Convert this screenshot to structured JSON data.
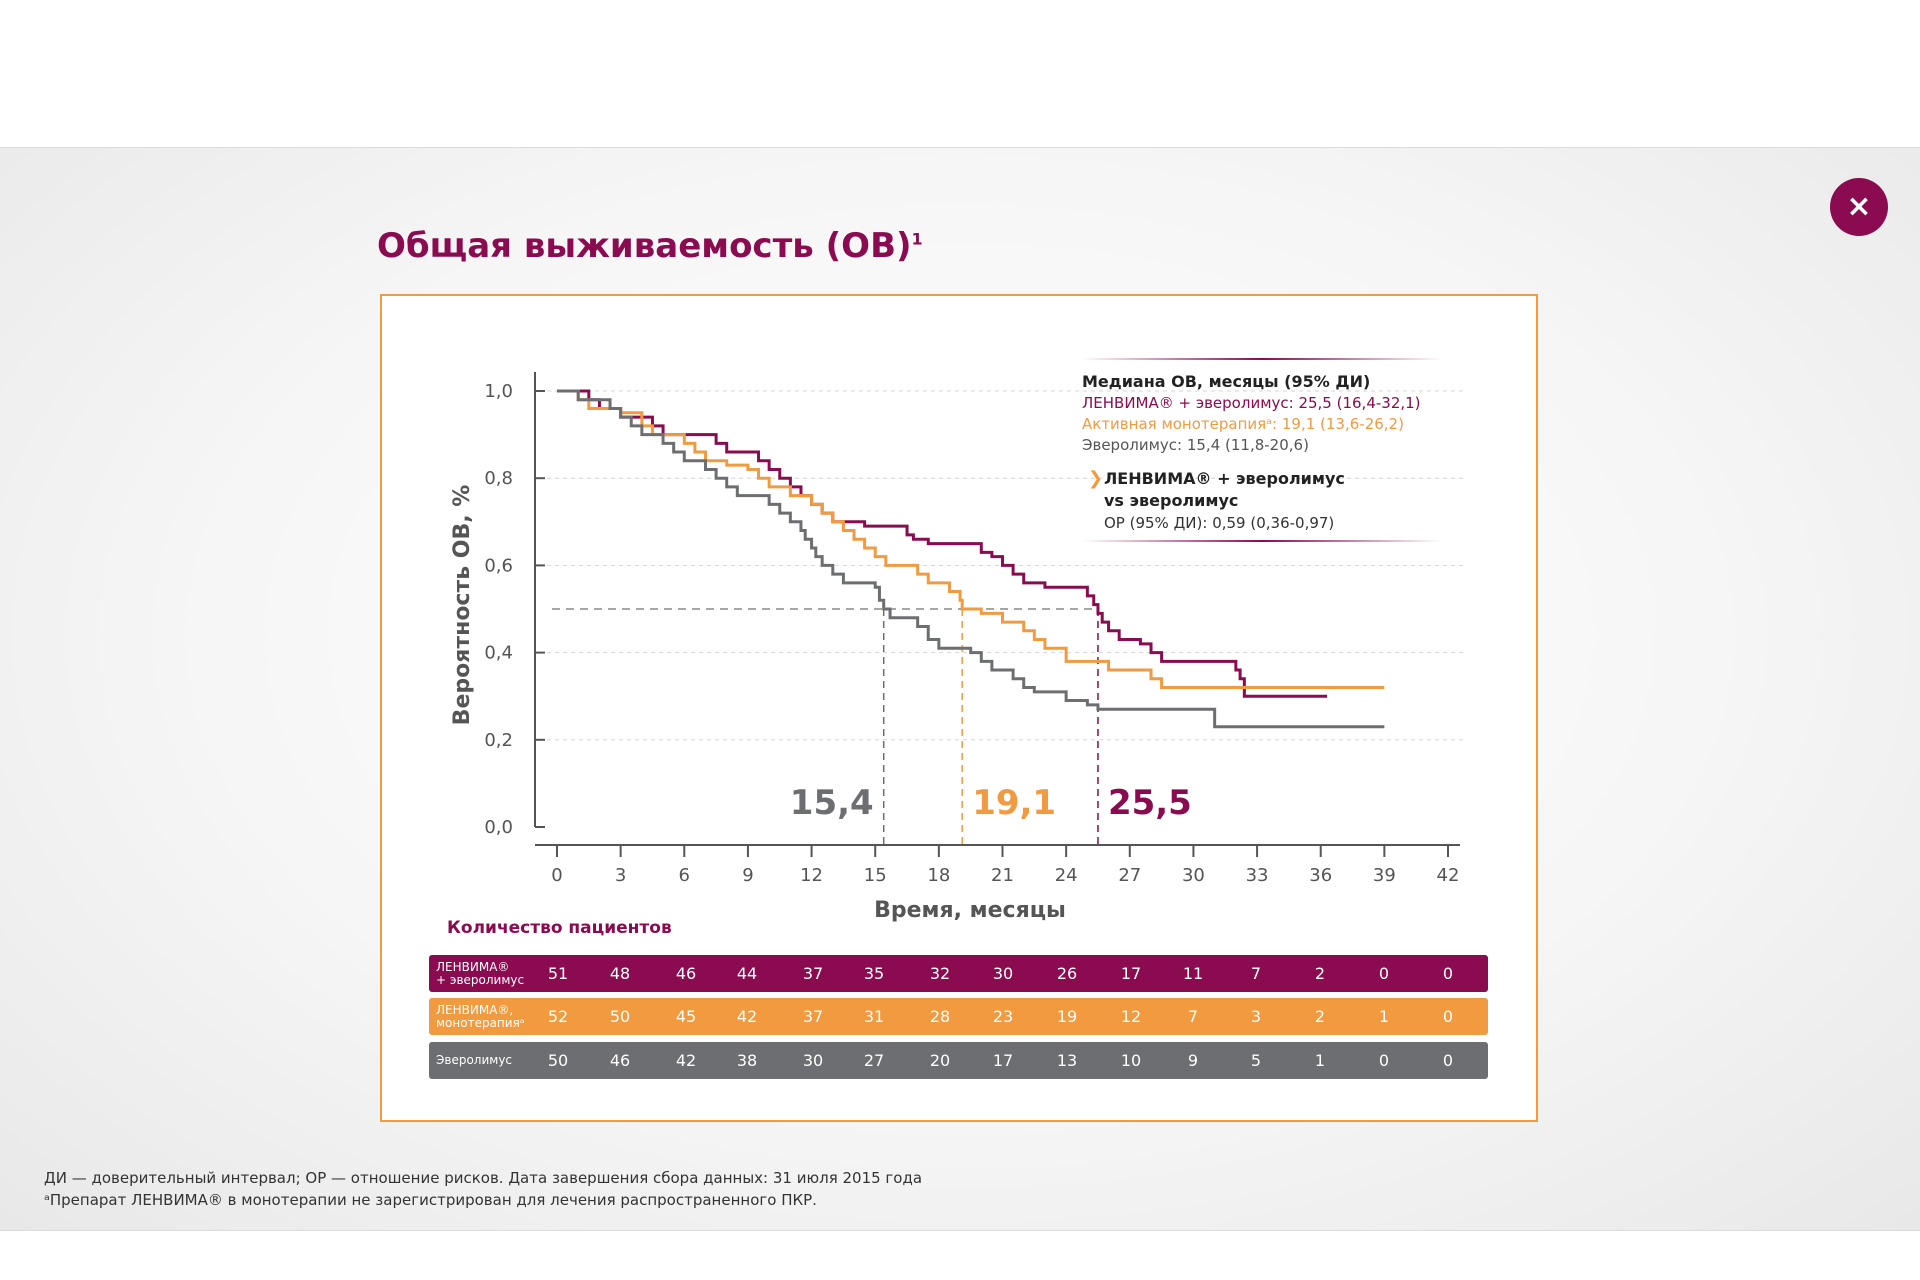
{
  "close_label": "×",
  "page_title": "Общая выживаемость (ОВ)",
  "page_title_sup": "1",
  "colors": {
    "lenvima_ever": "#8a0b4f",
    "lenvima_mono": "#f29a3f",
    "everolimus": "#6d6e71",
    "frame": "#f29a3f"
  },
  "chart_data": {
    "type": "line",
    "ylabel": "Вероятность ОВ, %",
    "xlabel": "Время, месяцы",
    "xlim": [
      0,
      42
    ],
    "ylim": [
      0,
      1
    ],
    "x_ticks": [
      0,
      3,
      6,
      9,
      12,
      15,
      18,
      21,
      24,
      27,
      30,
      33,
      36,
      39,
      42
    ],
    "y_ticks": [
      0,
      0.2,
      0.4,
      0.6,
      0.8,
      1.0
    ],
    "y_tick_labels": [
      "0,0",
      "0,2",
      "0,4",
      "0,6",
      "0,8",
      "1,0"
    ],
    "grid": "horizontal dashed",
    "median_line": 0.5,
    "legend": {
      "title": "Медиана ОВ, месяцы (95% ДИ)",
      "entries": [
        "ЛЕНВИМА® + эверолимус: 25,5 (16,4-32,1)",
        "Активная монотерапияᵃ: 19,1 (13,6-26,2)",
        "Эверолимус: 15,4 (11,8-20,6)"
      ],
      "hr_title_line1": "ЛЕНВИМА® + эверолимус",
      "hr_title_line2": "vs эверолимус",
      "hr_value": "ОР (95% ДИ): 0,59 (0,36-0,97)"
    },
    "medians": [
      {
        "label": "15,4",
        "x": 15.4,
        "color_key": "everolimus"
      },
      {
        "label": "19,1",
        "x": 19.1,
        "color_key": "lenvima_mono"
      },
      {
        "label": "25,5",
        "x": 25.5,
        "color_key": "lenvima_ever"
      }
    ],
    "series": [
      {
        "color_key": "lenvima_ever",
        "points": [
          [
            0,
            1.0
          ],
          [
            1.5,
            0.98
          ],
          [
            2,
            0.96
          ],
          [
            3,
            0.94
          ],
          [
            4.5,
            0.92
          ],
          [
            5,
            0.9
          ],
          [
            7.5,
            0.88
          ],
          [
            8,
            0.86
          ],
          [
            9.5,
            0.84
          ],
          [
            10,
            0.82
          ],
          [
            10.5,
            0.8
          ],
          [
            11,
            0.78
          ],
          [
            11.5,
            0.76
          ],
          [
            12,
            0.74
          ],
          [
            12.5,
            0.72
          ],
          [
            13,
            0.7
          ],
          [
            14.5,
            0.69
          ],
          [
            16.5,
            0.67
          ],
          [
            16.8,
            0.66
          ],
          [
            17.5,
            0.65
          ],
          [
            20,
            0.63
          ],
          [
            20.5,
            0.62
          ],
          [
            21,
            0.6
          ],
          [
            21.5,
            0.58
          ],
          [
            22,
            0.56
          ],
          [
            23,
            0.55
          ],
          [
            25,
            0.53
          ],
          [
            25.3,
            0.51
          ],
          [
            25.5,
            0.49
          ],
          [
            25.7,
            0.47
          ],
          [
            26,
            0.45
          ],
          [
            26.5,
            0.43
          ],
          [
            27.5,
            0.42
          ],
          [
            28,
            0.4
          ],
          [
            28.5,
            0.38
          ],
          [
            32,
            0.36
          ],
          [
            32.2,
            0.34
          ],
          [
            32.4,
            0.3
          ],
          [
            36.3,
            0.3
          ]
        ]
      },
      {
        "color_key": "lenvima_mono",
        "points": [
          [
            0,
            1.0
          ],
          [
            1,
            0.98
          ],
          [
            1.5,
            0.96
          ],
          [
            3,
            0.95
          ],
          [
            4,
            0.92
          ],
          [
            4.5,
            0.9
          ],
          [
            6,
            0.88
          ],
          [
            6.5,
            0.86
          ],
          [
            7,
            0.84
          ],
          [
            8,
            0.83
          ],
          [
            9,
            0.82
          ],
          [
            9.5,
            0.8
          ],
          [
            10,
            0.78
          ],
          [
            11,
            0.76
          ],
          [
            12,
            0.74
          ],
          [
            12.5,
            0.72
          ],
          [
            13,
            0.7
          ],
          [
            13.5,
            0.68
          ],
          [
            14,
            0.66
          ],
          [
            14.5,
            0.64
          ],
          [
            15,
            0.62
          ],
          [
            15.5,
            0.6
          ],
          [
            17,
            0.58
          ],
          [
            17.5,
            0.56
          ],
          [
            18.5,
            0.54
          ],
          [
            19,
            0.52
          ],
          [
            19.1,
            0.5
          ],
          [
            20,
            0.49
          ],
          [
            21,
            0.47
          ],
          [
            22,
            0.45
          ],
          [
            22.5,
            0.43
          ],
          [
            23,
            0.41
          ],
          [
            24,
            0.38
          ],
          [
            26,
            0.36
          ],
          [
            28,
            0.34
          ],
          [
            28.5,
            0.32
          ],
          [
            33,
            0.32
          ],
          [
            39,
            0.32
          ]
        ]
      },
      {
        "color_key": "everolimus",
        "points": [
          [
            0,
            1.0
          ],
          [
            1,
            0.98
          ],
          [
            2.5,
            0.96
          ],
          [
            3,
            0.94
          ],
          [
            3.5,
            0.92
          ],
          [
            4,
            0.9
          ],
          [
            5,
            0.88
          ],
          [
            5.5,
            0.86
          ],
          [
            6,
            0.84
          ],
          [
            7,
            0.82
          ],
          [
            7.5,
            0.8
          ],
          [
            8,
            0.78
          ],
          [
            8.5,
            0.76
          ],
          [
            10,
            0.74
          ],
          [
            10.5,
            0.72
          ],
          [
            11,
            0.7
          ],
          [
            11.5,
            0.68
          ],
          [
            11.7,
            0.66
          ],
          [
            12,
            0.64
          ],
          [
            12.2,
            0.62
          ],
          [
            12.5,
            0.6
          ],
          [
            13,
            0.58
          ],
          [
            13.5,
            0.56
          ],
          [
            15,
            0.55
          ],
          [
            15.2,
            0.52
          ],
          [
            15.4,
            0.5
          ],
          [
            15.7,
            0.48
          ],
          [
            17,
            0.46
          ],
          [
            17.5,
            0.43
          ],
          [
            18,
            0.41
          ],
          [
            19.5,
            0.4
          ],
          [
            20,
            0.38
          ],
          [
            20.5,
            0.36
          ],
          [
            21.5,
            0.34
          ],
          [
            22,
            0.32
          ],
          [
            22.5,
            0.31
          ],
          [
            24,
            0.29
          ],
          [
            25,
            0.28
          ],
          [
            25.5,
            0.27
          ],
          [
            30.5,
            0.27
          ],
          [
            31,
            0.23
          ],
          [
            39,
            0.23
          ]
        ]
      }
    ]
  },
  "patients": {
    "title": "Количество пациентов",
    "rows": [
      {
        "label1": "ЛЕНВИМА®",
        "label2": "+ эверолимус",
        "color_key": "lenvima_ever",
        "values": [
          "51",
          "48",
          "46",
          "44",
          "37",
          "35",
          "32",
          "30",
          "26",
          "17",
          "11",
          "7",
          "2",
          "0",
          "0"
        ]
      },
      {
        "label1": "ЛЕНВИМА®,",
        "label2": "монотерапияᵃ",
        "color_key": "lenvima_mono",
        "values": [
          "52",
          "50",
          "45",
          "42",
          "37",
          "31",
          "28",
          "23",
          "19",
          "12",
          "7",
          "3",
          "2",
          "1",
          "0"
        ]
      },
      {
        "label1": "Эверолимус",
        "label2": "",
        "color_key": "everolimus",
        "values": [
          "50",
          "46",
          "42",
          "38",
          "30",
          "27",
          "20",
          "17",
          "13",
          "10",
          "9",
          "5",
          "1",
          "0",
          "0"
        ]
      }
    ]
  },
  "footnotes": {
    "line1": "ДИ — доверительный интервал; ОР — отношение рисков. Дата завершения сбора данных: 31 июля 2015 года",
    "line2": "ᵃПрепарат ЛЕНВИМА® в монотерапии не зарегистрирован для лечения распространенного ПКР."
  }
}
